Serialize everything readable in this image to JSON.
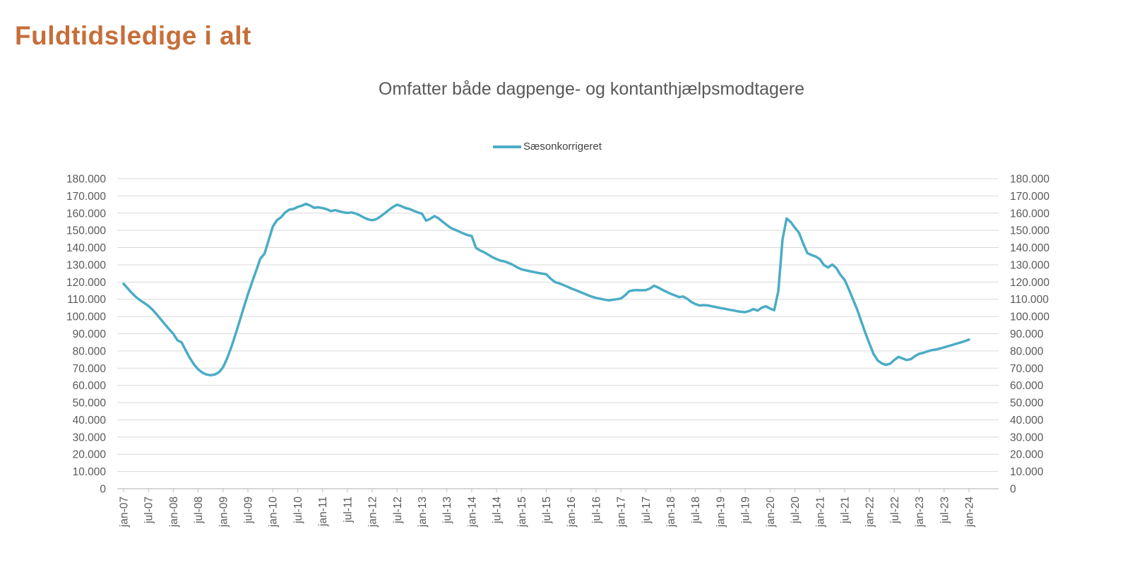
{
  "header": {
    "title": "Fuldtidsledige i alt"
  },
  "chart": {
    "subtitle": "Omfatter både dagpenge- og kontanthjælpsmodtagere",
    "legend": [
      {
        "label": "Sæsonkorrigeret",
        "color": "#4BACC6"
      }
    ]
  },
  "colors": {
    "title": "#C66E3A",
    "subtitle": "#595959",
    "legend_text": "#404040",
    "axis_text": "#595959",
    "gridline": "#D9D9D9",
    "axis_line": "#BFBFBF",
    "series": "#4BACC6",
    "background": "#FFFFFF"
  },
  "chart_data": {
    "type": "line",
    "title": "Omfatter både dagpenge- og kontanthjælpsmodtagere",
    "legend_position": "top-center",
    "grid": "horizontal",
    "dual_y_axis": true,
    "ylim": [
      0,
      180000
    ],
    "y_ticks": [
      0,
      10000,
      20000,
      30000,
      40000,
      50000,
      60000,
      70000,
      80000,
      90000,
      100000,
      110000,
      120000,
      130000,
      140000,
      150000,
      160000,
      170000,
      180000
    ],
    "y_tick_labels": [
      "0",
      "10.000",
      "20.000",
      "30.000",
      "40.000",
      "50.000",
      "60.000",
      "70.000",
      "80.000",
      "90.000",
      "100.000",
      "110.000",
      "120.000",
      "130.000",
      "140.000",
      "150.000",
      "160.000",
      "170.000",
      "180.000"
    ],
    "x_start": "jan-07",
    "x_end": "jan-24",
    "x_frequency": "monthly",
    "x_tick_every_months": 6,
    "x_tick_labels": [
      "jan-07",
      "jul-07",
      "jan-08",
      "jul-08",
      "jan-09",
      "jul-09",
      "jan-10",
      "jul-10",
      "jan-11",
      "jul-11",
      "jan-12",
      "jul-12",
      "jan-13",
      "jul-13",
      "jan-14",
      "jul-14",
      "jan-15",
      "jul-15",
      "jan-16",
      "jul-16",
      "jan-17",
      "jul-17",
      "jan-18",
      "jul-18",
      "jan-19",
      "jul-19",
      "jan-20",
      "jul-20",
      "jan-21",
      "jul-21",
      "jan-22",
      "jul-22",
      "jan-23",
      "jul-23",
      "jan-24"
    ],
    "series": [
      {
        "name": "Sæsonkorrigeret",
        "color": "#4BACC6",
        "values": [
          119000,
          116300,
          113600,
          111300,
          109400,
          107800,
          106100,
          103900,
          101200,
          98300,
          95400,
          92600,
          89900,
          86200,
          85000,
          80300,
          75800,
          72100,
          69300,
          67400,
          66300,
          65900,
          66300,
          67600,
          70500,
          75800,
          82300,
          89600,
          97400,
          105300,
          112800,
          119900,
          126700,
          133600,
          136400,
          144300,
          152100,
          155900,
          157600,
          160400,
          162100,
          162400,
          163600,
          164300,
          165400,
          164400,
          163100,
          163400,
          162900,
          162300,
          161200,
          161700,
          161100,
          160500,
          160100,
          160400,
          159800,
          158700,
          157400,
          156400,
          155900,
          156500,
          158100,
          159900,
          161800,
          163600,
          164900,
          164100,
          163000,
          162400,
          161400,
          160400,
          159700,
          155600,
          156700,
          158300,
          157000,
          155000,
          153100,
          151400,
          150300,
          149300,
          148200,
          147300,
          146700,
          139900,
          138400,
          137300,
          135900,
          134400,
          133300,
          132400,
          131900,
          131000,
          129900,
          128500,
          127400,
          126800,
          126300,
          125800,
          125300,
          124900,
          124500,
          122100,
          120100,
          119300,
          118400,
          117400,
          116300,
          115400,
          114400,
          113400,
          112400,
          111500,
          110800,
          110300,
          109800,
          109400,
          109700,
          110000,
          110400,
          112300,
          114700,
          115200,
          115300,
          115200,
          115300,
          116200,
          117900,
          116800,
          115500,
          114300,
          113200,
          112300,
          111300,
          111600,
          110300,
          108400,
          107200,
          106400,
          106600,
          106400,
          105900,
          105400,
          104900,
          104500,
          104000,
          103600,
          103100,
          102700,
          102500,
          103200,
          104300,
          103400,
          105100,
          105900,
          104600,
          103600,
          114800,
          144700,
          156900,
          154800,
          151500,
          148500,
          142300,
          136800,
          135700,
          134800,
          133300,
          129900,
          128400,
          130200,
          128100,
          124100,
          121200,
          115900,
          110000,
          104100,
          97300,
          90400,
          84100,
          78100,
          74400,
          72700,
          71900,
          72600,
          74800,
          76600,
          75600,
          74700,
          75300,
          77000,
          78400,
          78900,
          79800,
          80400,
          80800,
          81400,
          82100,
          82800,
          83500,
          84200,
          84900,
          85700,
          86600
        ]
      }
    ]
  }
}
